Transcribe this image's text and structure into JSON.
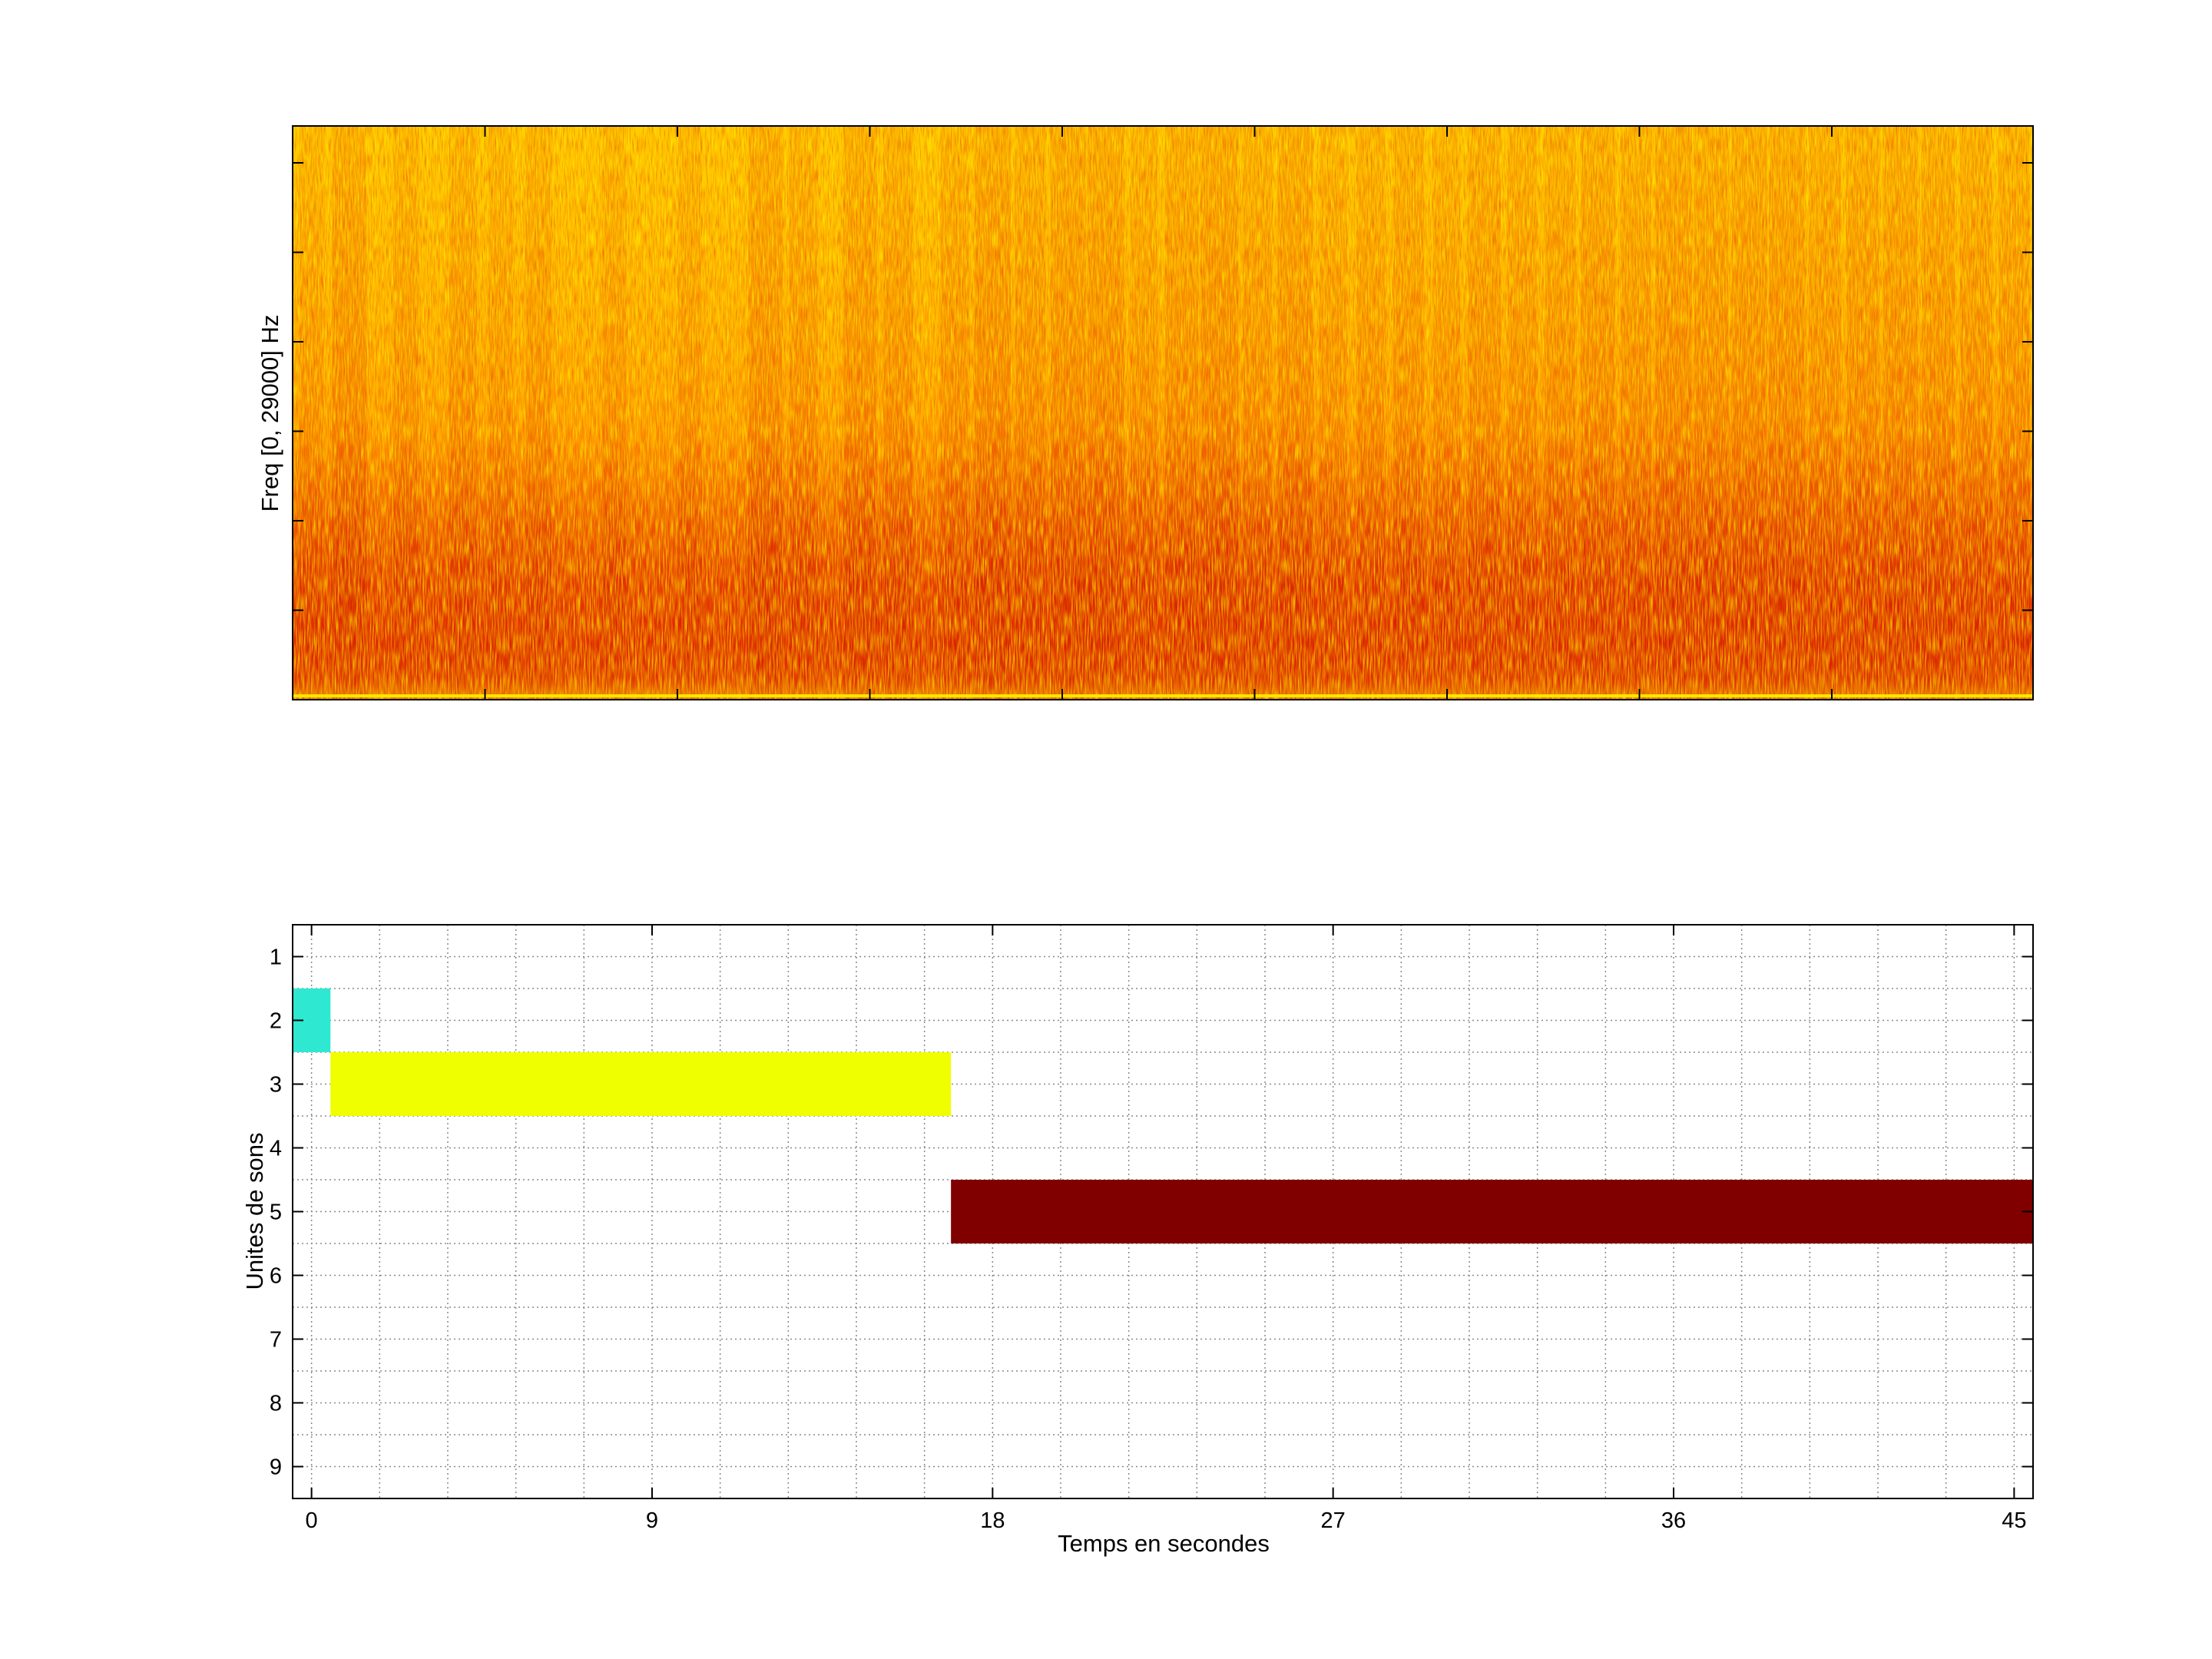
{
  "chart_data": [
    {
      "type": "heatmap",
      "kind": "spectrogram",
      "title": "",
      "xlabel": "",
      "ylabel": "Freq [0, 29000] Hz",
      "y_range_hz": [
        0,
        29000
      ],
      "x_range_s": [
        -0.5,
        45.5
      ],
      "colormap": [
        "#c80000",
        "#f04000",
        "#ff8c00",
        "#ffc000",
        "#ffe000"
      ],
      "intensity_profile": {
        "t": [
          0,
          1,
          2.5,
          4,
          5,
          6,
          8,
          10,
          12,
          13,
          14.5,
          15.5,
          17,
          18,
          19,
          20,
          21,
          22,
          23,
          24,
          25,
          26,
          27,
          28,
          29,
          30,
          31,
          32,
          33,
          34,
          35,
          36,
          37,
          38,
          39,
          40,
          41,
          42,
          43,
          44,
          45
        ],
        "level": [
          0.3,
          0.75,
          0.35,
          0.45,
          0.3,
          0.4,
          0.3,
          0.3,
          0.75,
          0.5,
          0.7,
          0.55,
          0.5,
          0.85,
          0.6,
          0.8,
          0.85,
          0.45,
          0.7,
          0.9,
          0.55,
          0.8,
          0.45,
          0.5,
          0.6,
          0.45,
          0.7,
          0.55,
          0.6,
          0.75,
          0.6,
          0.85,
          0.75,
          0.8,
          0.85,
          0.65,
          0.7,
          0.75,
          0.7,
          0.65,
          0.6
        ]
      }
    },
    {
      "type": "bar",
      "orientation": "horizontal",
      "title": "",
      "xlabel": "Temps en secondes",
      "ylabel": "Unites de sons",
      "xlim": [
        -0.5,
        45.5
      ],
      "ylim": [
        9.5,
        0.5
      ],
      "x_ticks": [
        0,
        9,
        18,
        27,
        36,
        45
      ],
      "y_ticks": [
        1,
        2,
        3,
        4,
        5,
        6,
        7,
        8,
        9
      ],
      "x_minor_grid_step": 1.8,
      "grid": true,
      "segments": [
        {
          "unit": 2,
          "start": -0.5,
          "end": 0.5,
          "color": "#2ee8d2"
        },
        {
          "unit": 3,
          "start": 0.5,
          "end": 16.9,
          "color": "#f0ff00"
        },
        {
          "unit": 5,
          "start": 16.9,
          "end": 45.5,
          "color": "#800000"
        }
      ]
    }
  ]
}
